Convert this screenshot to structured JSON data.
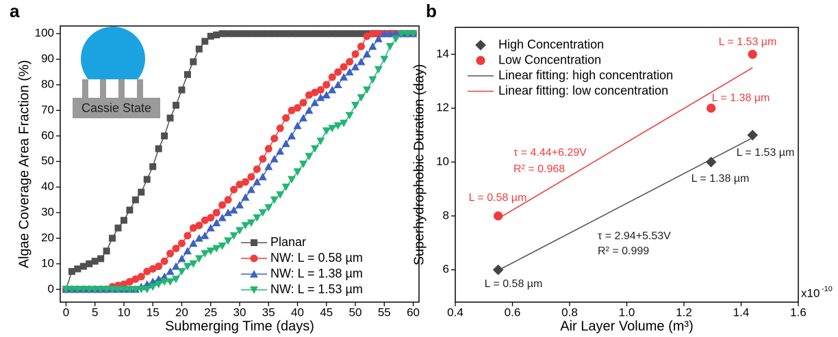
{
  "chart_data": [
    {
      "type": "line",
      "panel_label": "a",
      "xlabel": "Submerging Time (days)",
      "ylabel": "Algae Coverage Area Fraction (%)",
      "inset_label": "Cassie State",
      "x": [
        0,
        1,
        2,
        3,
        4,
        5,
        6,
        7,
        8,
        9,
        10,
        11,
        12,
        13,
        14,
        15,
        16,
        17,
        18,
        19,
        20,
        21,
        22,
        23,
        24,
        25,
        26,
        27,
        28,
        29,
        30,
        31,
        32,
        33,
        34,
        35,
        36,
        37,
        38,
        39,
        40,
        41,
        42,
        43,
        44,
        45,
        46,
        47,
        48,
        49,
        50,
        51,
        52,
        53,
        54,
        55,
        56,
        57,
        58,
        59,
        60
      ],
      "series": [
        {
          "name": "Planar",
          "color": "#505050",
          "marker": "square",
          "values": [
            0,
            7,
            8,
            9,
            10,
            11,
            12,
            15,
            20,
            24,
            27,
            31,
            35,
            38,
            43,
            48,
            55,
            60,
            67,
            72,
            78,
            84,
            89,
            94,
            97,
            99,
            99.5,
            100,
            100,
            100,
            100,
            100,
            100,
            100,
            100,
            100,
            100,
            100,
            100,
            100,
            100,
            100,
            100,
            100,
            100,
            100,
            100,
            100,
            100,
            100,
            100,
            100,
            100,
            100,
            100,
            100,
            100,
            100,
            100,
            100,
            100
          ]
        },
        {
          "name": "NW: L = 0.58 µm",
          "color": "#f03c3c",
          "marker": "circle",
          "values": [
            0,
            0,
            0,
            0,
            0,
            0,
            0,
            0,
            1,
            1.5,
            2,
            3,
            4,
            5,
            7,
            8,
            9,
            11,
            14,
            16,
            18,
            21,
            24,
            25,
            27,
            28,
            30,
            33,
            35,
            39,
            41,
            42,
            44,
            47,
            51,
            55,
            59,
            63,
            67,
            70,
            71,
            73,
            76,
            77,
            78,
            80,
            83,
            85,
            87,
            89,
            92,
            95,
            99,
            100,
            100,
            100,
            100,
            100,
            100,
            100,
            100
          ]
        },
        {
          "name": "NW: L = 1.38 µm",
          "color": "#3b62c4",
          "marker": "triangle-up",
          "values": [
            0,
            0,
            0,
            0,
            0,
            0,
            0,
            0,
            0,
            0,
            0,
            0,
            0,
            1,
            2,
            3,
            4,
            5,
            7,
            9,
            12,
            15,
            18,
            20,
            21,
            24,
            26,
            28,
            30,
            31,
            33,
            36,
            39,
            42,
            44,
            48,
            51,
            54,
            57,
            60,
            64,
            67,
            70,
            73,
            75,
            76,
            78,
            80,
            83,
            85,
            87,
            89,
            92,
            95,
            98,
            100,
            100,
            100,
            100,
            100,
            100
          ]
        },
        {
          "name": "NW: L = 1.53 µm",
          "color": "#22b573",
          "marker": "triangle-down",
          "values": [
            0,
            0,
            0,
            0,
            0,
            0,
            0,
            0,
            0,
            0,
            0,
            0,
            0,
            0,
            0,
            1,
            2,
            3,
            3,
            4,
            7,
            9,
            10,
            12,
            14,
            15,
            16,
            17,
            19,
            21,
            23,
            25,
            26,
            28,
            30,
            32,
            35,
            37,
            40,
            43,
            46,
            49,
            52,
            55,
            58,
            62,
            63,
            64,
            65,
            68,
            72,
            75,
            78,
            82,
            86,
            90,
            95,
            98,
            100,
            100,
            100
          ]
        }
      ],
      "xlim": [
        -1,
        61
      ],
      "xticks": [
        0,
        5,
        10,
        15,
        20,
        25,
        30,
        35,
        40,
        45,
        50,
        55,
        60
      ],
      "ylim": [
        -5,
        103
      ],
      "yticks": [
        0,
        10,
        20,
        30,
        40,
        50,
        60,
        70,
        80,
        90,
        100
      ],
      "legend": "lower right"
    },
    {
      "type": "scatter",
      "panel_label": "b",
      "xlabel": "Air Layer Volume (m³)",
      "ylabel": "Superhydrophobic Duration (day)",
      "x_multiplier": "x10",
      "x_multiplier_exp": "-10",
      "series": [
        {
          "name": "High Concentration",
          "color": "#444444",
          "marker": "diamond",
          "x": [
            0.55,
            1.295,
            1.44
          ],
          "values": [
            6,
            10,
            11
          ]
        },
        {
          "name": "Low Concentration",
          "color": "#f03c3c",
          "marker": "circle",
          "x": [
            0.55,
            1.295,
            1.44
          ],
          "values": [
            8,
            12,
            14
          ]
        },
        {
          "name": "Linear fitting: high concentration",
          "color": "#555555",
          "marker": "none",
          "x": [
            0.55,
            1.44
          ],
          "values": [
            5.98,
            10.9
          ]
        },
        {
          "name": "Linear fitting: low concentration",
          "color": "#f03c3c",
          "marker": "none",
          "x": [
            0.55,
            1.44
          ],
          "values": [
            7.9,
            13.5
          ]
        }
      ],
      "annotations": [
        {
          "text": "L = 1.53 µm",
          "color": "#f03c3c"
        },
        {
          "text": "L = 1.38 µm",
          "color": "#f03c3c"
        },
        {
          "text": "L = 0.58 µm",
          "color": "#f03c3c"
        },
        {
          "text": "L = 1.53 µm",
          "color": "#222222"
        },
        {
          "text": "L = 1.38 µm",
          "color": "#222222"
        },
        {
          "text": "L = 0.58 µm",
          "color": "#222222"
        },
        {
          "text": "τ = 4.44+6.29V",
          "color": "#f03c3c"
        },
        {
          "text": "R² = 0.968",
          "color": "#f03c3c"
        },
        {
          "text": "τ = 2.94+5.53V",
          "color": "#222222"
        },
        {
          "text": "R² = 0.999",
          "color": "#222222"
        }
      ],
      "xlim": [
        0.4,
        1.6
      ],
      "xticks": [
        0.4,
        0.6,
        0.8,
        {
          "value": 1.0,
          "label": "1.0"
        },
        1.2,
        1.4,
        1.6
      ],
      "ylim": [
        4.8,
        15
      ],
      "yticks": [
        6,
        8,
        10,
        12,
        14
      ],
      "legend": "upper left"
    }
  ]
}
